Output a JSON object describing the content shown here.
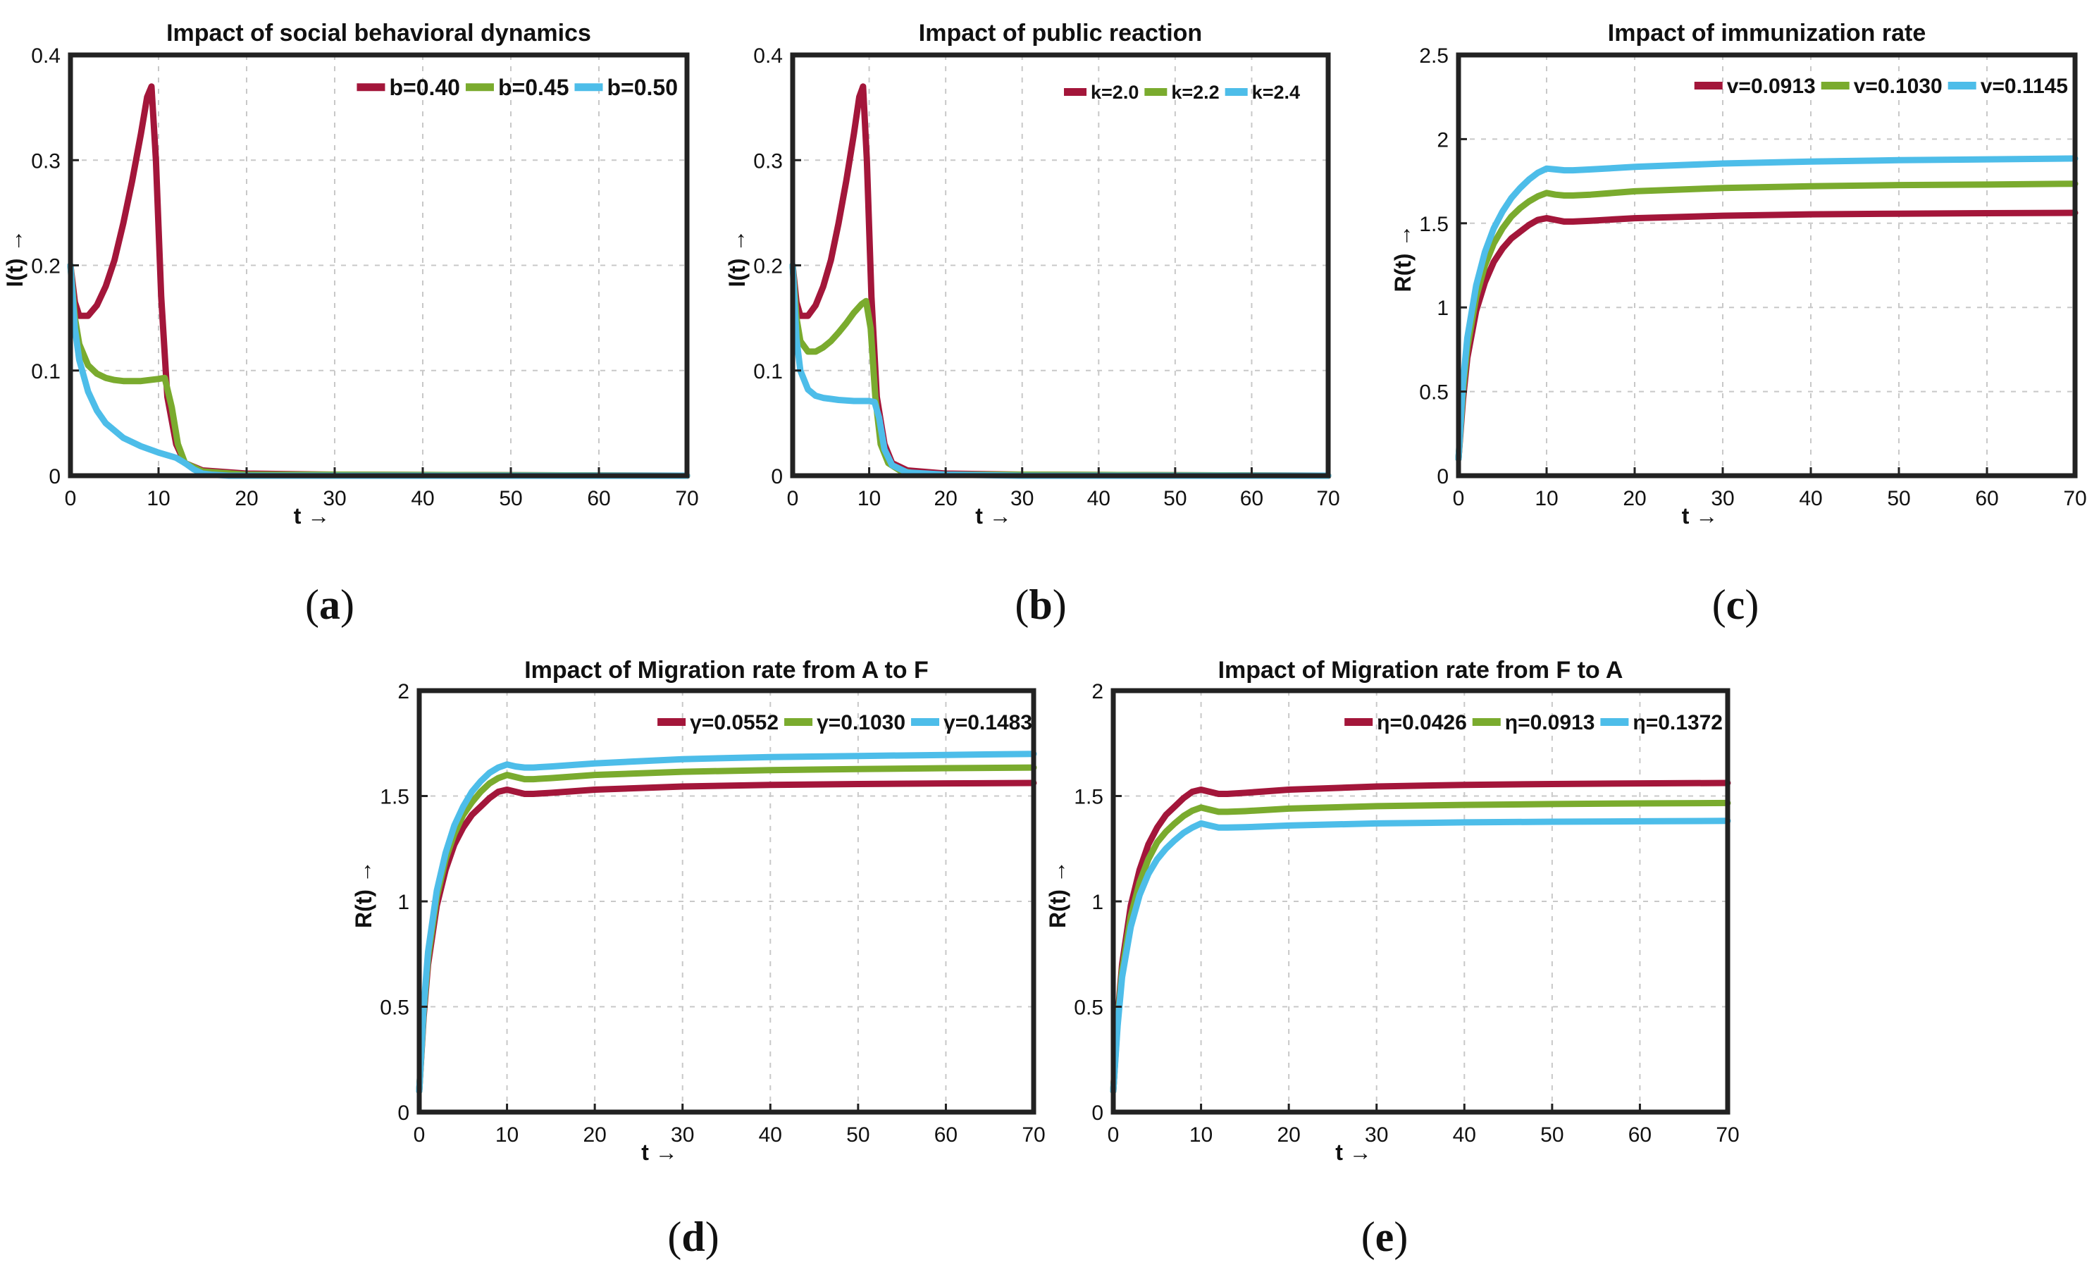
{
  "figure": {
    "captions": [
      {
        "open": "(",
        "letter": "a",
        "close": ")"
      },
      {
        "open": "(",
        "letter": "b",
        "close": ")"
      },
      {
        "open": "(",
        "letter": "c",
        "close": ")"
      },
      {
        "open": "(",
        "letter": "d",
        "close": ")"
      },
      {
        "open": "(",
        "letter": "e",
        "close": ")"
      }
    ]
  },
  "colors": {
    "red": "#a3163a",
    "green": "#7aab2e",
    "blue": "#4dbde9",
    "grid": "#c8c8c8",
    "frame": "#222222"
  },
  "chart_data": [
    {
      "type": "line",
      "title": "Impact of social behavioral dynamics",
      "xlabel": "t →",
      "ylabel": "I(t) →",
      "xlim": [
        0,
        70
      ],
      "ylim": [
        0,
        0.4
      ],
      "xticks": [
        0,
        10,
        20,
        30,
        40,
        50,
        60,
        70
      ],
      "xtick_labels": [
        "0",
        "10",
        "20",
        "30",
        "40",
        "50",
        "60",
        "70"
      ],
      "yticks": [
        0,
        0.1,
        0.2,
        0.3,
        0.4
      ],
      "ytick_labels": [
        "0",
        "0.1",
        "0.2",
        "0.3",
        "0.4"
      ],
      "grid": true,
      "legend_position": "top-right",
      "series": [
        {
          "name": "b=0.40",
          "color": "red",
          "x": [
            0,
            0.5,
            1,
            2,
            3,
            4,
            5,
            6,
            7,
            8,
            8.7,
            9.2,
            9.7,
            10.3,
            11,
            12,
            13,
            15,
            20,
            30,
            70
          ],
          "y": [
            0.2,
            0.165,
            0.152,
            0.152,
            0.162,
            0.18,
            0.205,
            0.24,
            0.28,
            0.325,
            0.36,
            0.37,
            0.3,
            0.17,
            0.075,
            0.03,
            0.012,
            0.005,
            0.002,
            0.001,
            0
          ]
        },
        {
          "name": "b=0.45",
          "color": "green",
          "x": [
            0,
            0.5,
            1,
            2,
            3,
            4,
            5,
            6,
            8,
            10,
            10.7,
            11.5,
            12.2,
            13,
            15,
            20,
            30,
            70
          ],
          "y": [
            0.2,
            0.15,
            0.125,
            0.105,
            0.097,
            0.093,
            0.091,
            0.09,
            0.09,
            0.092,
            0.093,
            0.065,
            0.03,
            0.012,
            0.004,
            0.001,
            0.001,
            0
          ]
        },
        {
          "name": "b=0.50",
          "color": "blue",
          "x": [
            0,
            0.5,
            1,
            2,
            3,
            4,
            6,
            8,
            10,
            12,
            13,
            14,
            15,
            16,
            18,
            20,
            30,
            70
          ],
          "y": [
            0.2,
            0.14,
            0.11,
            0.08,
            0.062,
            0.05,
            0.036,
            0.028,
            0.022,
            0.017,
            0.012,
            0.006,
            0.002,
            0.001,
            0,
            0,
            0,
            0
          ]
        }
      ]
    },
    {
      "type": "line",
      "title": "Impact of public reaction",
      "xlabel": "t →",
      "ylabel": "I(t) →",
      "xlim": [
        0,
        70
      ],
      "ylim": [
        0,
        0.4
      ],
      "xticks": [
        0,
        10,
        20,
        30,
        40,
        50,
        60,
        70
      ],
      "xtick_labels": [
        "0",
        "10",
        "20",
        "30",
        "40",
        "50",
        "60",
        "70"
      ],
      "yticks": [
        0,
        0.1,
        0.2,
        0.3,
        0.4
      ],
      "ytick_labels": [
        "0",
        "0.1",
        "0.2",
        "0.3",
        "0.4"
      ],
      "grid": true,
      "legend_position": "top-right",
      "series": [
        {
          "name": "k=2.0",
          "color": "red",
          "x": [
            0,
            0.5,
            1,
            2,
            3,
            4,
            5,
            6,
            7,
            8,
            8.7,
            9.2,
            9.7,
            10.3,
            11,
            12,
            13,
            15,
            20,
            30,
            70
          ],
          "y": [
            0.2,
            0.165,
            0.152,
            0.152,
            0.162,
            0.18,
            0.205,
            0.24,
            0.28,
            0.325,
            0.36,
            0.37,
            0.3,
            0.17,
            0.075,
            0.03,
            0.012,
            0.005,
            0.002,
            0.001,
            0
          ]
        },
        {
          "name": "k=2.2",
          "color": "green",
          "x": [
            0,
            0.5,
            1,
            2,
            3,
            4,
            5,
            6,
            7,
            8,
            9,
            9.6,
            10.2,
            10.8,
            11.5,
            12.5,
            14,
            16,
            20,
            30,
            70
          ],
          "y": [
            0.2,
            0.15,
            0.128,
            0.118,
            0.118,
            0.122,
            0.128,
            0.136,
            0.145,
            0.155,
            0.163,
            0.166,
            0.14,
            0.075,
            0.03,
            0.012,
            0.005,
            0.002,
            0.001,
            0.001,
            0
          ]
        },
        {
          "name": "k=2.4",
          "color": "blue",
          "x": [
            0,
            0.5,
            1,
            2,
            3,
            4,
            5,
            6,
            8,
            10,
            10.7,
            11.3,
            12,
            13,
            15,
            20,
            30,
            70
          ],
          "y": [
            0.2,
            0.13,
            0.1,
            0.082,
            0.076,
            0.074,
            0.073,
            0.072,
            0.071,
            0.071,
            0.07,
            0.055,
            0.025,
            0.01,
            0.003,
            0.001,
            0,
            0
          ]
        }
      ]
    },
    {
      "type": "line",
      "title": "Impact of immunization rate",
      "xlabel": "t →",
      "ylabel": "R(t) →",
      "xlim": [
        0,
        70
      ],
      "ylim": [
        0,
        2.5
      ],
      "xticks": [
        0,
        10,
        20,
        30,
        40,
        50,
        60,
        70
      ],
      "xtick_labels": [
        "0",
        "10",
        "20",
        "30",
        "40",
        "50",
        "60",
        "70"
      ],
      "yticks": [
        0,
        0.5,
        1,
        1.5,
        2,
        2.5
      ],
      "ytick_labels": [
        "0",
        "0.5",
        "1",
        "1.5",
        "2",
        "2.5"
      ],
      "grid": true,
      "legend_position": "top-right",
      "series": [
        {
          "name": "v=0.0913",
          "color": "red",
          "x": [
            0,
            0.5,
            1,
            2,
            3,
            4,
            5,
            6,
            7,
            8,
            9,
            10,
            11,
            12,
            13,
            15,
            20,
            30,
            40,
            50,
            60,
            70
          ],
          "y": [
            0.1,
            0.45,
            0.7,
            0.98,
            1.15,
            1.27,
            1.35,
            1.41,
            1.45,
            1.49,
            1.52,
            1.53,
            1.52,
            1.51,
            1.51,
            1.515,
            1.53,
            1.545,
            1.553,
            1.557,
            1.56,
            1.562
          ]
        },
        {
          "name": "v=0.1030",
          "color": "green",
          "x": [
            0,
            0.5,
            1,
            2,
            3,
            4,
            5,
            6,
            7,
            8,
            9,
            10,
            11,
            12,
            13,
            15,
            20,
            30,
            40,
            50,
            60,
            70
          ],
          "y": [
            0.1,
            0.5,
            0.76,
            1.06,
            1.25,
            1.38,
            1.47,
            1.54,
            1.59,
            1.63,
            1.66,
            1.68,
            1.67,
            1.665,
            1.665,
            1.67,
            1.69,
            1.71,
            1.72,
            1.727,
            1.73,
            1.735
          ]
        },
        {
          "name": "v=0.1145",
          "color": "blue",
          "x": [
            0,
            0.5,
            1,
            2,
            3,
            4,
            5,
            6,
            7,
            8,
            9,
            10,
            11,
            12,
            13,
            15,
            20,
            30,
            40,
            50,
            60,
            70
          ],
          "y": [
            0.1,
            0.55,
            0.82,
            1.13,
            1.33,
            1.47,
            1.57,
            1.65,
            1.71,
            1.76,
            1.8,
            1.825,
            1.82,
            1.815,
            1.815,
            1.82,
            1.835,
            1.855,
            1.867,
            1.875,
            1.88,
            1.885
          ]
        }
      ]
    },
    {
      "type": "line",
      "title": "Impact of Migration rate from A to F",
      "xlabel": "t →",
      "ylabel": "R(t) →",
      "xlim": [
        0,
        70
      ],
      "ylim": [
        0,
        2
      ],
      "xticks": [
        0,
        10,
        20,
        30,
        40,
        50,
        60,
        70
      ],
      "xtick_labels": [
        "0",
        "10",
        "20",
        "30",
        "40",
        "50",
        "60",
        "70"
      ],
      "yticks": [
        0,
        0.5,
        1,
        1.5,
        2
      ],
      "ytick_labels": [
        "0",
        "0.5",
        "1",
        "1.5",
        "2"
      ],
      "grid": true,
      "legend_position": "top-right",
      "series": [
        {
          "name": "γ=0.0552",
          "color": "red",
          "x": [
            0,
            0.5,
            1,
            2,
            3,
            4,
            5,
            6,
            7,
            8,
            9,
            10,
            11,
            12,
            13,
            15,
            20,
            30,
            40,
            50,
            60,
            70
          ],
          "y": [
            0.1,
            0.45,
            0.7,
            0.98,
            1.15,
            1.27,
            1.35,
            1.41,
            1.45,
            1.49,
            1.52,
            1.53,
            1.52,
            1.51,
            1.51,
            1.515,
            1.53,
            1.545,
            1.553,
            1.557,
            1.56,
            1.562
          ]
        },
        {
          "name": "γ=0.1030",
          "color": "green",
          "x": [
            0,
            0.5,
            1,
            2,
            3,
            4,
            5,
            6,
            7,
            8,
            9,
            10,
            11,
            12,
            13,
            15,
            20,
            30,
            40,
            50,
            60,
            70
          ],
          "y": [
            0.1,
            0.47,
            0.73,
            1.02,
            1.2,
            1.32,
            1.41,
            1.47,
            1.52,
            1.56,
            1.585,
            1.6,
            1.59,
            1.58,
            1.58,
            1.585,
            1.6,
            1.615,
            1.623,
            1.628,
            1.632,
            1.635
          ]
        },
        {
          "name": "γ=0.1483",
          "color": "blue",
          "x": [
            0,
            0.5,
            1,
            2,
            3,
            4,
            5,
            6,
            7,
            8,
            9,
            10,
            11,
            12,
            13,
            15,
            20,
            30,
            40,
            50,
            60,
            70
          ],
          "y": [
            0.1,
            0.49,
            0.76,
            1.05,
            1.23,
            1.36,
            1.45,
            1.52,
            1.57,
            1.61,
            1.635,
            1.65,
            1.64,
            1.635,
            1.635,
            1.64,
            1.655,
            1.675,
            1.685,
            1.69,
            1.695,
            1.7
          ]
        }
      ]
    },
    {
      "type": "line",
      "title": "Impact of Migration rate from F to A",
      "xlabel": "t →",
      "ylabel": "R(t) →",
      "xlim": [
        0,
        70
      ],
      "ylim": [
        0,
        2
      ],
      "xticks": [
        0,
        10,
        20,
        30,
        40,
        50,
        60,
        70
      ],
      "xtick_labels": [
        "0",
        "10",
        "20",
        "30",
        "40",
        "50",
        "60",
        "70"
      ],
      "yticks": [
        0,
        0.5,
        1,
        1.5,
        2
      ],
      "ytick_labels": [
        "0",
        "0.5",
        "1",
        "1.5",
        "2"
      ],
      "grid": true,
      "legend_position": "top-right",
      "series": [
        {
          "name": "η=0.0426",
          "color": "red",
          "x": [
            0,
            0.5,
            1,
            2,
            3,
            4,
            5,
            6,
            7,
            8,
            9,
            10,
            11,
            12,
            13,
            15,
            20,
            30,
            40,
            50,
            60,
            70
          ],
          "y": [
            0.1,
            0.45,
            0.7,
            0.98,
            1.15,
            1.27,
            1.35,
            1.41,
            1.45,
            1.49,
            1.52,
            1.53,
            1.52,
            1.51,
            1.51,
            1.515,
            1.53,
            1.545,
            1.553,
            1.557,
            1.56,
            1.562
          ]
        },
        {
          "name": "η=0.0913",
          "color": "green",
          "x": [
            0,
            0.5,
            1,
            2,
            3,
            4,
            5,
            6,
            7,
            8,
            9,
            10,
            11,
            12,
            13,
            15,
            20,
            30,
            40,
            50,
            60,
            70
          ],
          "y": [
            0.1,
            0.43,
            0.67,
            0.93,
            1.09,
            1.2,
            1.28,
            1.33,
            1.37,
            1.405,
            1.43,
            1.445,
            1.435,
            1.425,
            1.425,
            1.428,
            1.44,
            1.452,
            1.458,
            1.462,
            1.465,
            1.467
          ]
        },
        {
          "name": "η=0.1372",
          "color": "blue",
          "x": [
            0,
            0.5,
            1,
            2,
            3,
            4,
            5,
            6,
            7,
            8,
            9,
            10,
            11,
            12,
            13,
            15,
            20,
            30,
            40,
            50,
            60,
            70
          ],
          "y": [
            0.1,
            0.41,
            0.64,
            0.88,
            1.03,
            1.13,
            1.2,
            1.25,
            1.29,
            1.325,
            1.35,
            1.37,
            1.36,
            1.35,
            1.35,
            1.352,
            1.36,
            1.37,
            1.375,
            1.378,
            1.38,
            1.382
          ]
        }
      ]
    }
  ]
}
